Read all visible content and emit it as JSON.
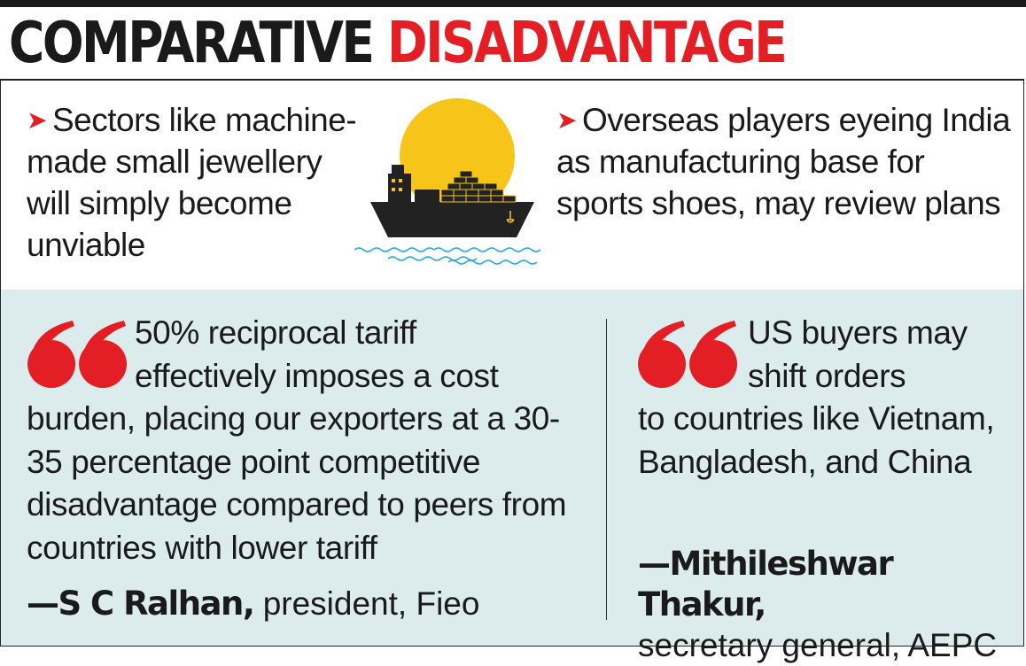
{
  "title": {
    "part1": "COMPARATIVE",
    "part2": "DISADVANTAGE"
  },
  "bullets": {
    "left": "Sectors like machine-made small jewellery will simply become unviable",
    "right": "Overseas players eyeing India as manufacturing base for sports shoes, may review plans"
  },
  "quotes": {
    "left": {
      "lead": "50% reciprocal tariff",
      "lead2": "effectively imposes a cost",
      "body": "burden, placing our exporters at a 30-35 percentage point competitive disadvantage compared to peers from countries with lower tariff",
      "attribution_name": "—S C Ralhan,",
      "attribution_role": "president, Fieo"
    },
    "right": {
      "lead": "US buyers may",
      "lead2": "shift orders",
      "body": "to countries like Vietnam, Bangladesh, and China",
      "attribution_name": "—Mithileshwar Thakur,",
      "attribution_role": "secretary general, AEPC"
    }
  },
  "icons": {
    "bullet": "red-arrow-icon",
    "quote": "quote-mark-icon",
    "illustration": "cargo-ship-icon"
  },
  "colors": {
    "accent": "#e31e24",
    "panel": "#dcecec",
    "sun": "#f7c41a",
    "text": "#1a1a1a"
  }
}
